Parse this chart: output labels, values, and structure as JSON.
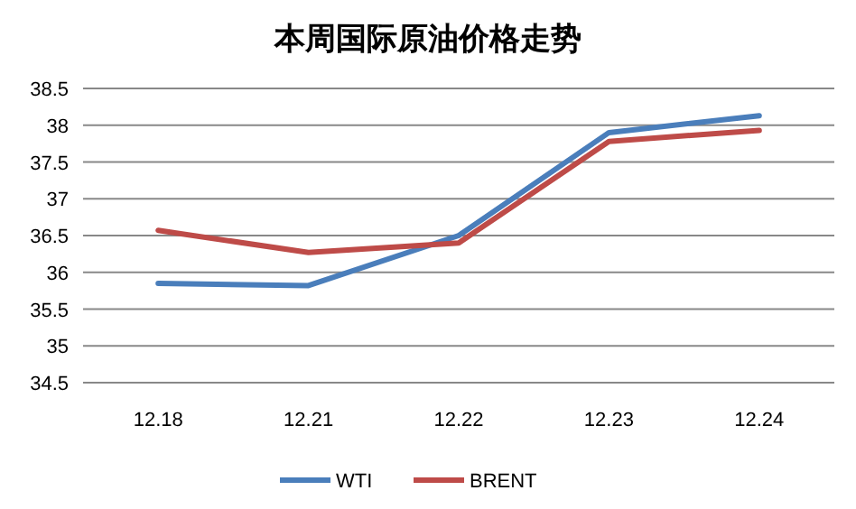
{
  "chart_data": {
    "type": "line",
    "title": "本周国际原油价格走势",
    "categories": [
      "12.18",
      "12.21",
      "12.22",
      "12.23",
      "12.24"
    ],
    "series": [
      {
        "name": "WTI",
        "color": "#4a7ebb",
        "values": [
          35.85,
          35.82,
          36.5,
          37.9,
          38.13
        ]
      },
      {
        "name": "BRENT",
        "color": "#be4b48",
        "values": [
          36.57,
          36.27,
          36.4,
          37.78,
          37.93
        ]
      }
    ],
    "ylim": [
      34.5,
      38.5
    ],
    "yticks": [
      34.5,
      35,
      35.5,
      36,
      36.5,
      37,
      37.5,
      38,
      38.5
    ],
    "grid": "y",
    "legend": "bottom",
    "marker": "none",
    "line_style": "solid"
  }
}
